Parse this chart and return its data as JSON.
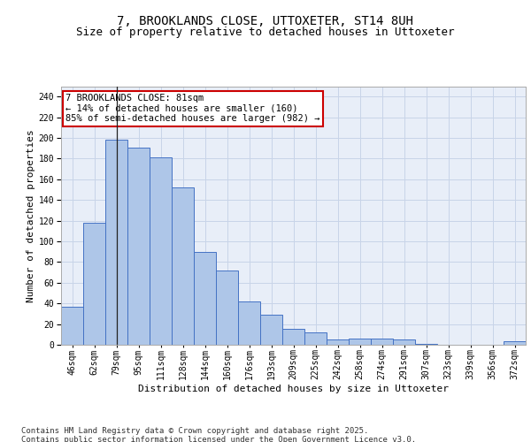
{
  "title": "7, BROOKLANDS CLOSE, UTTOXETER, ST14 8UH",
  "subtitle": "Size of property relative to detached houses in Uttoxeter",
  "xlabel": "Distribution of detached houses by size in Uttoxeter",
  "ylabel": "Number of detached properties",
  "categories": [
    "46sqm",
    "62sqm",
    "79sqm",
    "95sqm",
    "111sqm",
    "128sqm",
    "144sqm",
    "160sqm",
    "176sqm",
    "193sqm",
    "209sqm",
    "225sqm",
    "242sqm",
    "258sqm",
    "274sqm",
    "291sqm",
    "307sqm",
    "323sqm",
    "339sqm",
    "356sqm",
    "372sqm"
  ],
  "values": [
    37,
    118,
    198,
    191,
    181,
    152,
    90,
    72,
    42,
    29,
    15,
    12,
    5,
    6,
    6,
    5,
    1,
    0,
    0,
    0,
    3
  ],
  "bar_color": "#aec6e8",
  "bar_edge_color": "#4472c4",
  "annotation_text": "7 BROOKLANDS CLOSE: 81sqm\n← 14% of detached houses are smaller (160)\n85% of semi-detached houses are larger (982) →",
  "annotation_box_color": "#ffffff",
  "annotation_box_edge_color": "#cc0000",
  "vline_x": 2.0,
  "ylim": [
    0,
    250
  ],
  "yticks": [
    0,
    20,
    40,
    60,
    80,
    100,
    120,
    140,
    160,
    180,
    200,
    220,
    240
  ],
  "grid_color": "#c8d4e8",
  "background_color": "#e8eef8",
  "footer_text": "Contains HM Land Registry data © Crown copyright and database right 2025.\nContains public sector information licensed under the Open Government Licence v3.0.",
  "title_fontsize": 10,
  "subtitle_fontsize": 9,
  "axis_label_fontsize": 8,
  "tick_fontsize": 7,
  "annotation_fontsize": 7.5,
  "footer_fontsize": 6.5
}
